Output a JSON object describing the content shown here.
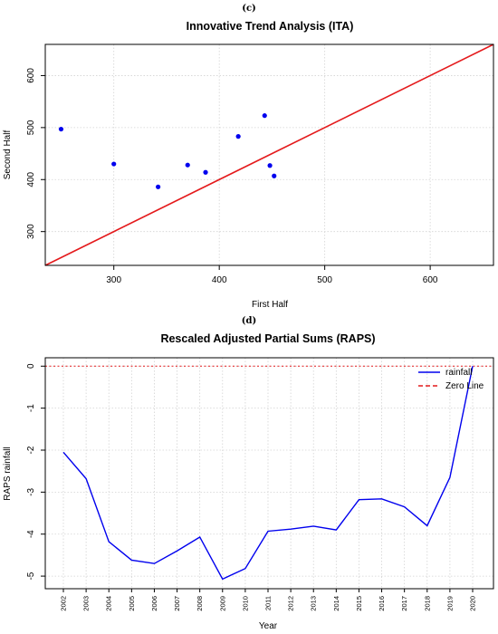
{
  "chart_data": [
    {
      "panel_label": "(c)",
      "type": "scatter",
      "title": "Innovative Trend Analysis (ITA)",
      "xlabel": "First Half",
      "ylabel": "Second Half",
      "xlim": [
        235,
        660
      ],
      "ylim": [
        235,
        660
      ],
      "xticks": [
        300,
        400,
        500,
        600
      ],
      "yticks": [
        300,
        400,
        500,
        600
      ],
      "grid": true,
      "points": [
        {
          "x": 250,
          "y": 497
        },
        {
          "x": 300,
          "y": 430
        },
        {
          "x": 342,
          "y": 386
        },
        {
          "x": 370,
          "y": 428
        },
        {
          "x": 387,
          "y": 414
        },
        {
          "x": 418,
          "y": 483
        },
        {
          "x": 443,
          "y": 523
        },
        {
          "x": 448,
          "y": 427
        },
        {
          "x": 452,
          "y": 407
        }
      ],
      "reference_line": {
        "from": [
          235,
          235
        ],
        "to": [
          660,
          660
        ],
        "color": "#e41a1c"
      },
      "point_color": "#0000ee"
    },
    {
      "panel_label": "(d)",
      "type": "line",
      "title": "Rescaled Adjusted Partial Sums (RAPS)",
      "xlabel": "Year",
      "ylabel": "RAPS rainfall",
      "ylim": [
        -5.3,
        0.2
      ],
      "yticks": [
        0,
        -1,
        -2,
        -3,
        -4,
        -5
      ],
      "grid": true,
      "x": [
        "2002",
        "2003",
        "2004",
        "2005",
        "2006",
        "2007",
        "2008",
        "2009",
        "2010",
        "2011",
        "2012",
        "2013",
        "2014",
        "2015",
        "2016",
        "2017",
        "2018",
        "2019",
        "2020"
      ],
      "series": [
        {
          "name": "rainfall",
          "color": "#0000ee",
          "values": [
            -2.05,
            -2.68,
            -4.18,
            -4.62,
            -4.7,
            -4.4,
            -4.07,
            -5.07,
            -4.82,
            -3.93,
            -3.88,
            -3.81,
            -3.9,
            -3.18,
            -3.16,
            -3.35,
            -3.8,
            -2.65,
            0.0
          ]
        }
      ],
      "zero_line": {
        "name": "Zero Line",
        "value": 0,
        "color": "#e41a1c"
      },
      "legend_position": "top-right"
    }
  ]
}
